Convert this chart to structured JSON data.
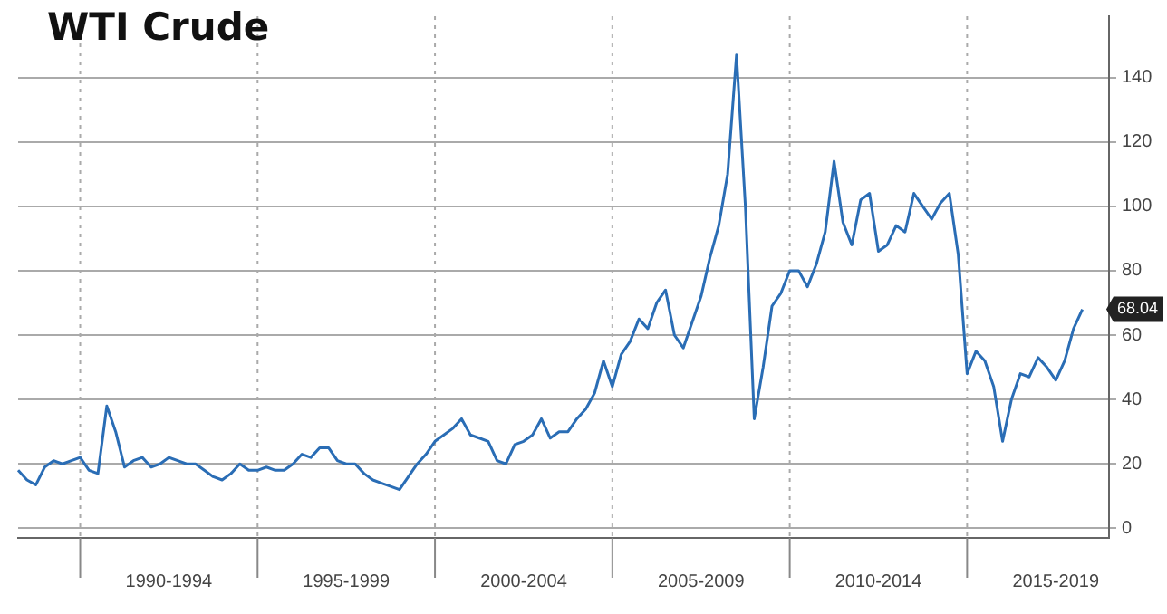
{
  "chart_data": {
    "type": "line",
    "title": "WTI Crude",
    "categories": [
      null,
      null,
      null,
      null,
      null,
      null,
      null,
      null,
      null,
      null,
      null,
      null,
      null,
      null,
      null,
      null,
      null,
      "1990-1994",
      null,
      null,
      null,
      null,
      null,
      null,
      null,
      null,
      null,
      null,
      null,
      null,
      null,
      null,
      null,
      null,
      null,
      null,
      null,
      "1995-1999",
      null,
      null,
      null,
      null,
      null,
      null,
      null,
      null,
      null,
      null,
      null,
      null,
      null,
      null,
      null,
      null,
      null,
      null,
      null,
      "2000-2004",
      null,
      null,
      null,
      null,
      null,
      null,
      null,
      null,
      null,
      null,
      null,
      null,
      null,
      null,
      null,
      null,
      null,
      null,
      null,
      "2005-2009",
      null,
      null,
      null,
      null,
      null,
      null,
      null,
      null,
      null,
      null,
      null,
      null,
      null,
      null,
      null,
      null,
      null,
      null,
      null,
      "2010-2014",
      null,
      null,
      null,
      null,
      null,
      null,
      null,
      null,
      null,
      null,
      null,
      null,
      null,
      null,
      null,
      null,
      null,
      null,
      null,
      "2015-2019",
      null,
      null,
      null,
      null,
      null,
      null
    ],
    "series": [
      {
        "color": "#2a6db5",
        "values": [
          18,
          15,
          13.5,
          19,
          21,
          20,
          21,
          22,
          18,
          17,
          38,
          30,
          19,
          21,
          22,
          19,
          20,
          22,
          21,
          20,
          20,
          18,
          16,
          15,
          17,
          20,
          18,
          18,
          19,
          18,
          18,
          20,
          23,
          22,
          25,
          25,
          21,
          20,
          20,
          17,
          15,
          14,
          13,
          12,
          16,
          20,
          23,
          27,
          29,
          31,
          34,
          29,
          28,
          27,
          21,
          20,
          26,
          27,
          29,
          34,
          28,
          30,
          30,
          34,
          37,
          42,
          52,
          44,
          54,
          58,
          65,
          62,
          70,
          74,
          60,
          56,
          64,
          72,
          84,
          94,
          110,
          147,
          100,
          34,
          50,
          69,
          73,
          80,
          80,
          75,
          82,
          92,
          114,
          95,
          88,
          102,
          104,
          86,
          88,
          94,
          92,
          104,
          100,
          96,
          101,
          104,
          85,
          48,
          55,
          52,
          44,
          27,
          40,
          48,
          47,
          53,
          50,
          46,
          52,
          62,
          68,
          null,
          null,
          null
        ]
      }
    ],
    "ylim": [
      -3,
      159
    ],
    "yticks": [
      0,
      20,
      40,
      60,
      80,
      100,
      120,
      140
    ],
    "grid": true,
    "marker": "none",
    "line_style": "solid",
    "annotations": [
      {
        "text": "68.04",
        "y": 68.04
      }
    ]
  }
}
